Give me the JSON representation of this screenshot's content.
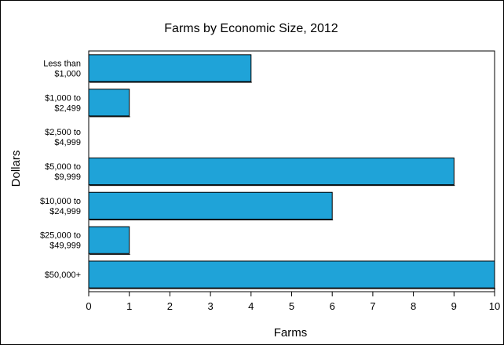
{
  "chart_data": {
    "type": "bar",
    "orientation": "horizontal",
    "title": "Farms by Economic Size, 2012",
    "xlabel": "Farms",
    "ylabel": "Dollars",
    "categories": [
      [
        "Less than",
        "$1,000"
      ],
      [
        "$1,000 to",
        "$2,499"
      ],
      [
        "$2,500 to",
        "$4,999"
      ],
      [
        "$5,000 to",
        "$9,999"
      ],
      [
        "$10,000 to",
        "$24,999"
      ],
      [
        "$25,000 to",
        "$49,999"
      ],
      [
        "$50,000+"
      ]
    ],
    "values": [
      4,
      1,
      0,
      9,
      6,
      1,
      10
    ],
    "xlim": [
      0,
      10
    ],
    "xticks": [
      "0",
      "1",
      "2",
      "3",
      "4",
      "5",
      "6",
      "7",
      "8",
      "9",
      "10"
    ],
    "bar_color": "#1fa3d8",
    "grid": false,
    "legend": "none"
  }
}
